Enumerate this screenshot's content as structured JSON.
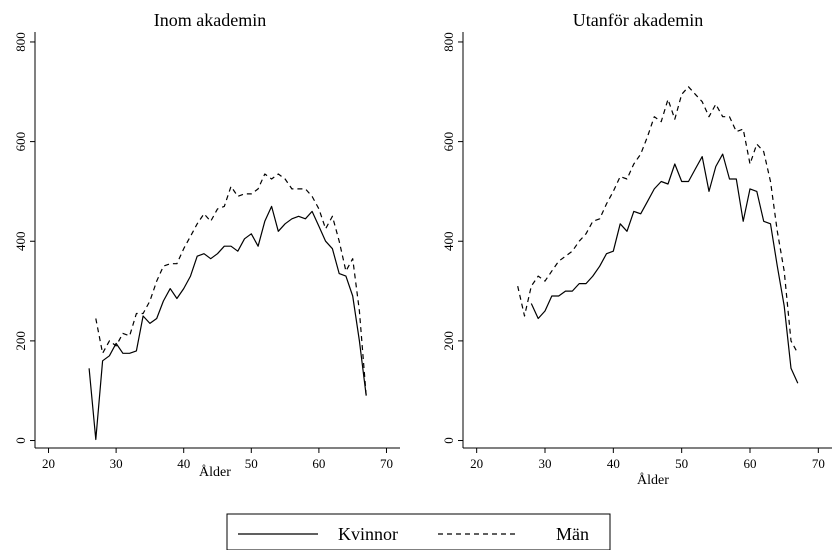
{
  "chart_data": [
    {
      "type": "line",
      "title": "Inom akademin",
      "xlabel": "Ålder",
      "ylabel": "",
      "xlim": [
        18,
        72
      ],
      "ylim": [
        -15,
        820
      ],
      "xticks": [
        20,
        30,
        40,
        50,
        60,
        70
      ],
      "yticks": [
        0,
        200,
        400,
        600,
        800
      ],
      "grid": false,
      "series": [
        {
          "name": "Kvinnor",
          "style": "solid",
          "x": [
            26,
            27,
            28,
            29,
            30,
            31,
            32,
            33,
            34,
            35,
            36,
            37,
            38,
            39,
            40,
            41,
            42,
            43,
            44,
            45,
            46,
            47,
            48,
            49,
            50,
            51,
            52,
            53,
            54,
            55,
            56,
            57,
            58,
            59,
            60,
            61,
            62,
            63,
            64,
            65,
            66,
            67
          ],
          "y": [
            145,
            2,
            160,
            170,
            195,
            175,
            175,
            180,
            250,
            235,
            245,
            280,
            305,
            285,
            305,
            330,
            370,
            375,
            365,
            375,
            390,
            390,
            380,
            405,
            415,
            390,
            440,
            470,
            420,
            435,
            445,
            450,
            445,
            460,
            430,
            400,
            385,
            335,
            330,
            290,
            200,
            90
          ]
        },
        {
          "name": "Män",
          "style": "dashed",
          "x": [
            27,
            28,
            29,
            30,
            31,
            32,
            33,
            34,
            35,
            36,
            37,
            38,
            39,
            40,
            41,
            42,
            43,
            44,
            45,
            46,
            47,
            48,
            49,
            50,
            51,
            52,
            53,
            54,
            55,
            56,
            57,
            58,
            59,
            60,
            61,
            62,
            63,
            64,
            65,
            66,
            67
          ],
          "y": [
            245,
            175,
            200,
            190,
            215,
            210,
            255,
            255,
            280,
            320,
            350,
            355,
            355,
            385,
            410,
            435,
            455,
            440,
            465,
            470,
            510,
            490,
            495,
            495,
            505,
            535,
            525,
            535,
            525,
            505,
            505,
            505,
            490,
            465,
            425,
            450,
            400,
            340,
            365,
            260,
            90
          ]
        }
      ]
    },
    {
      "type": "line",
      "title": "Utanför akademin",
      "xlabel": "Ålder",
      "ylabel": "",
      "xlim": [
        18,
        72
      ],
      "ylim": [
        -15,
        820
      ],
      "xticks": [
        20,
        30,
        40,
        50,
        60,
        70
      ],
      "yticks": [
        0,
        200,
        400,
        600,
        800
      ],
      "grid": false,
      "series": [
        {
          "name": "Kvinnor",
          "style": "solid",
          "x": [
            28,
            29,
            30,
            31,
            32,
            33,
            34,
            35,
            36,
            37,
            38,
            39,
            40,
            41,
            42,
            43,
            44,
            45,
            46,
            47,
            48,
            49,
            50,
            51,
            52,
            53,
            54,
            55,
            56,
            57,
            58,
            59,
            60,
            61,
            62,
            63,
            64,
            65,
            66,
            67
          ],
          "y": [
            275,
            245,
            260,
            290,
            290,
            300,
            300,
            315,
            315,
            330,
            350,
            375,
            380,
            435,
            420,
            460,
            455,
            480,
            505,
            520,
            515,
            555,
            520,
            520,
            545,
            570,
            500,
            550,
            575,
            525,
            525,
            440,
            505,
            500,
            440,
            435,
            350,
            270,
            145,
            115
          ]
        },
        {
          "name": "Män",
          "style": "dashed",
          "x": [
            26,
            27,
            28,
            29,
            30,
            31,
            32,
            33,
            34,
            35,
            36,
            37,
            38,
            39,
            40,
            41,
            42,
            43,
            44,
            45,
            46,
            47,
            48,
            49,
            50,
            51,
            52,
            53,
            54,
            55,
            56,
            57,
            58,
            59,
            60,
            61,
            62,
            63,
            64,
            65,
            66,
            67
          ],
          "y": [
            310,
            250,
            310,
            330,
            320,
            340,
            360,
            370,
            380,
            400,
            415,
            440,
            445,
            475,
            500,
            530,
            525,
            555,
            575,
            610,
            650,
            640,
            685,
            645,
            695,
            710,
            695,
            680,
            650,
            675,
            650,
            650,
            620,
            625,
            555,
            595,
            580,
            520,
            420,
            340,
            200,
            175
          ]
        }
      ]
    }
  ],
  "legend": {
    "items": [
      {
        "label": "Kvinnor",
        "style": "solid"
      },
      {
        "label": "Män",
        "style": "dashed"
      }
    ]
  }
}
